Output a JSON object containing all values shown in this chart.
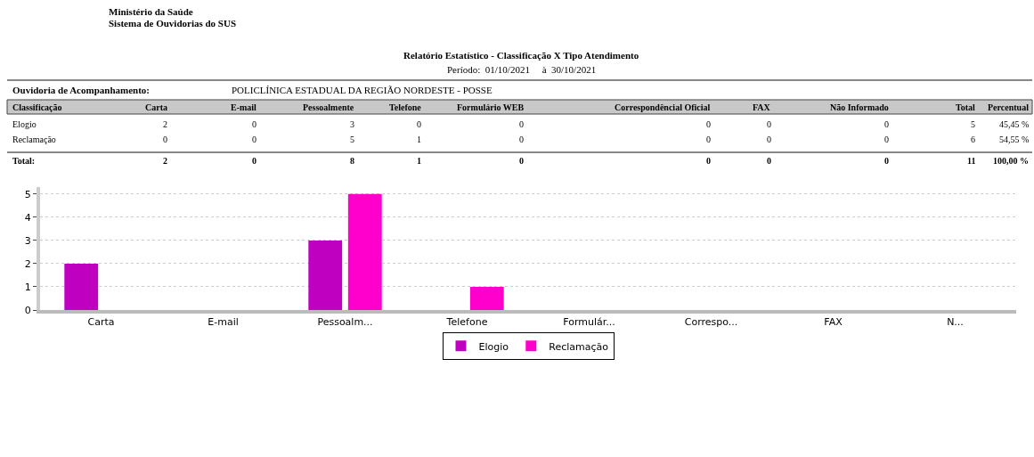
{
  "chart_data": {
    "type": "bar",
    "title": "Relatório Estatístico - Classificação X Tipo Atendimento",
    "subtitle": "Período:  01/10/2021     à  30/10/2021",
    "annotations": [
      "Ministério da Saúde",
      "Sistema de Ouvidorias do SUS",
      "Ouvidoria de Acompanhamento:",
      "POLICLÍNICA ESTADUAL DA REGIÃO NORDESTE - POSSE",
      "Classificação",
      "Carta",
      "E-mail",
      "Pessoalmente",
      "Telefone",
      "Formulário WEB",
      "Correspondêncial Oficial",
      "FAX",
      "Não Informado",
      "Total",
      "Percentual",
      "Elogio",
      "2",
      "0",
      "3",
      "0",
      "0",
      "0",
      "0",
      "0",
      "5",
      "45,45 %",
      "Reclamação",
      "0",
      "0",
      "5",
      "1",
      "0",
      "0",
      "0",
      "0",
      "6",
      "54,55 %",
      "Total:",
      "2",
      "0",
      "8",
      "1",
      "0",
      "0",
      "0",
      "0",
      "11",
      "100,00 %"
    ],
    "categories": [
      "Carta",
      "E-mail",
      "Pessoalm...",
      "Telefone",
      "Formulár...",
      "Correspo...",
      "FAX",
      "N..."
    ],
    "series": [
      {
        "name": "Elogio",
        "color": "#c000c0",
        "values": [
          2,
          0,
          3,
          0,
          0,
          0,
          0,
          0
        ]
      },
      {
        "name": "Reclamação",
        "color": "#ff00cc",
        "values": [
          0,
          0,
          5,
          1,
          0,
          0,
          0,
          0
        ]
      }
    ],
    "ylim": [
      0,
      5.3
    ],
    "yticks": [
      0,
      1,
      2,
      3,
      4,
      5
    ],
    "grid": "y",
    "legend": "bottom"
  }
}
